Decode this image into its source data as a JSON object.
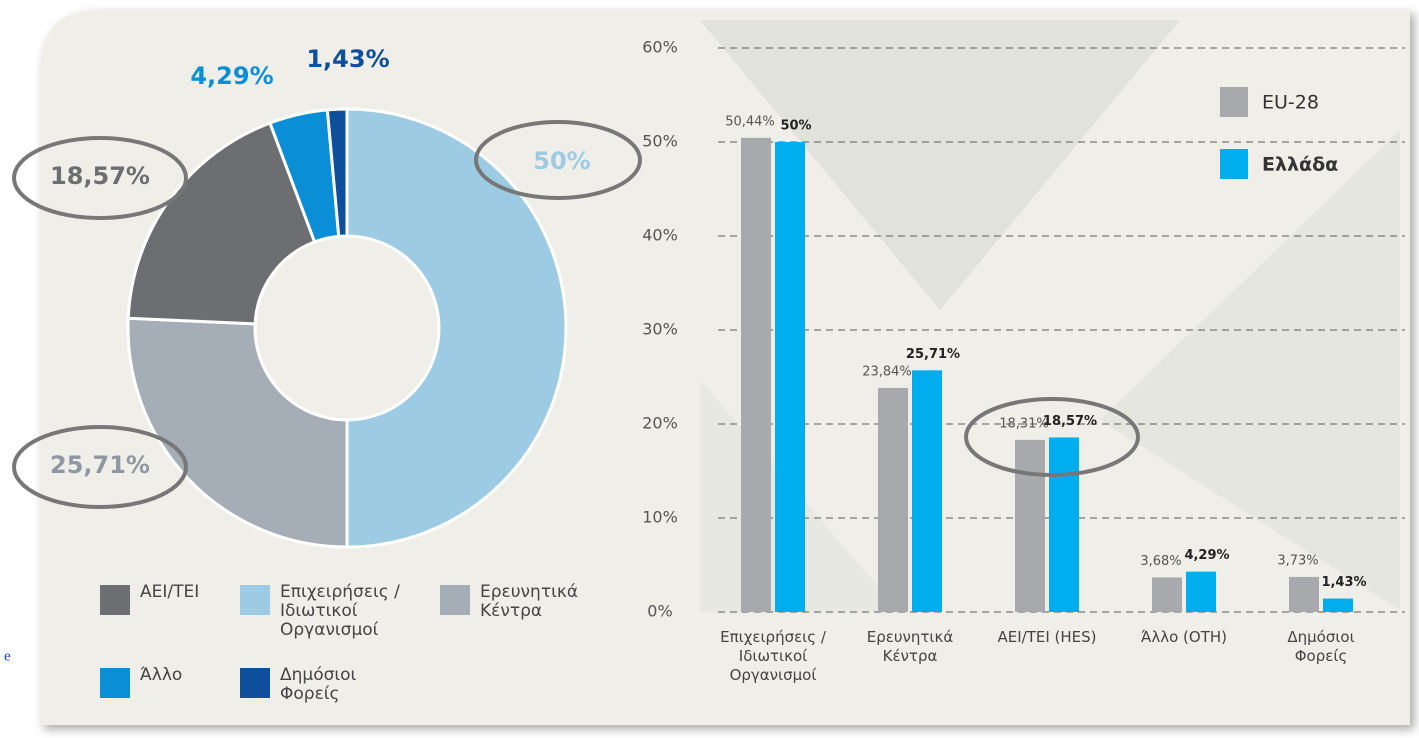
{
  "fragment_text": "e",
  "chart_data": [
    {
      "type": "donut",
      "categories": [
        "Επιχειρήσεις / Ιδιωτικοί Οργανισμοί",
        "Ερευνητικά Κέντρα",
        "ΑΕΙ/ΤΕΙ",
        "Άλλο",
        "Δημόσιοι Φορείς"
      ],
      "values": [
        50,
        25.71,
        18.57,
        4.29,
        1.43
      ],
      "value_labels": [
        "50%",
        "25,71%",
        "18,57%",
        "4,29%",
        "1,43%"
      ],
      "colors": [
        "#9ccbe3",
        "#a5adb6",
        "#6d6e71",
        "#0a8fd6",
        "#0d4f9a"
      ]
    },
    {
      "type": "bar",
      "categories": [
        "Επιχειρήσεις / Ιδιωτικοί Οργανισμοί",
        "Ερευνητικά Κέντρα",
        "ΑΕΙ/ΤΕΙ (HES)",
        "Άλλο (OTH)",
        "Δημόσιοι Φορείς"
      ],
      "series": [
        {
          "name": "EU-28",
          "color": "#a7a9ac",
          "values": [
            50.44,
            23.84,
            18.31,
            3.68,
            3.73
          ],
          "value_labels": [
            "50,44%",
            "23,84%",
            "18,31%",
            "3,68%",
            "3,73%"
          ]
        },
        {
          "name": "Ελλάδα",
          "color": "#00aeef",
          "values": [
            50,
            25.71,
            18.57,
            4.29,
            1.43
          ],
          "value_labels": [
            "50%",
            "25,71%",
            "18,57%",
            "4,29%",
            "1,43%"
          ]
        }
      ],
      "ylim": [
        0,
        60
      ],
      "yticks": [
        {
          "value": 0,
          "label": "0%"
        },
        {
          "value": 10,
          "label": "10%"
        },
        {
          "value": 20,
          "label": "20%"
        },
        {
          "value": 30,
          "label": "30%"
        },
        {
          "value": 40,
          "label": "40%"
        },
        {
          "value": 50,
          "label": "50%"
        },
        {
          "value": 60,
          "label": "60%"
        }
      ],
      "grid": true,
      "legend": "upper right"
    }
  ]
}
